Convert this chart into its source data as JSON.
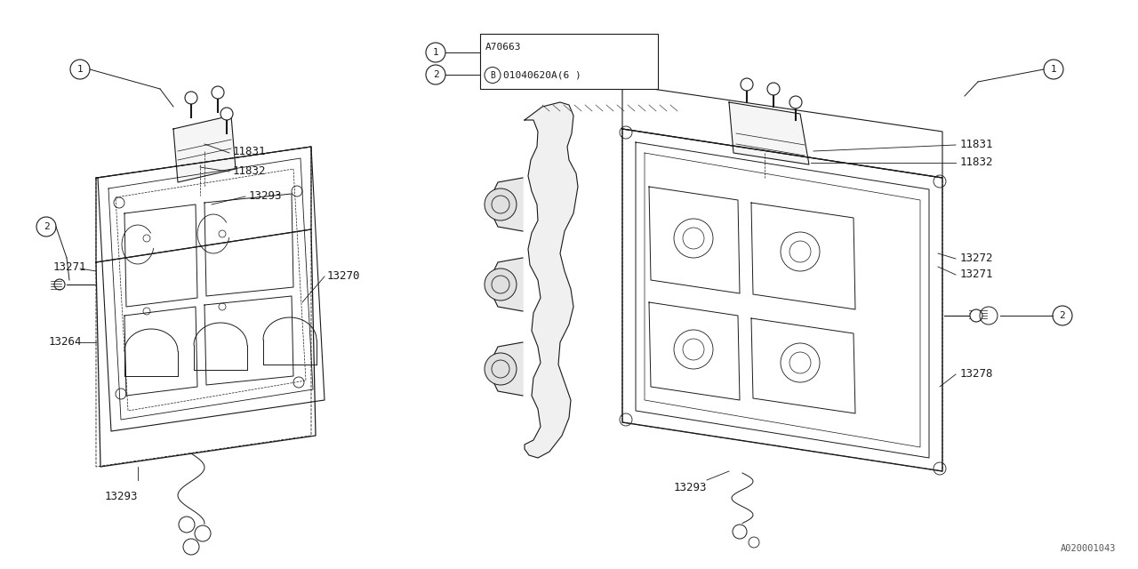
{
  "bg_color": "#ffffff",
  "line_color": "#1a1a1a",
  "watermark": "A020001043",
  "legend_row1": "B01040620A(6 )",
  "legend_row2": "A70663",
  "font_size": 9,
  "small_font": 7.5,
  "fig_w": 12.8,
  "fig_h": 6.4,
  "dpi": 100
}
